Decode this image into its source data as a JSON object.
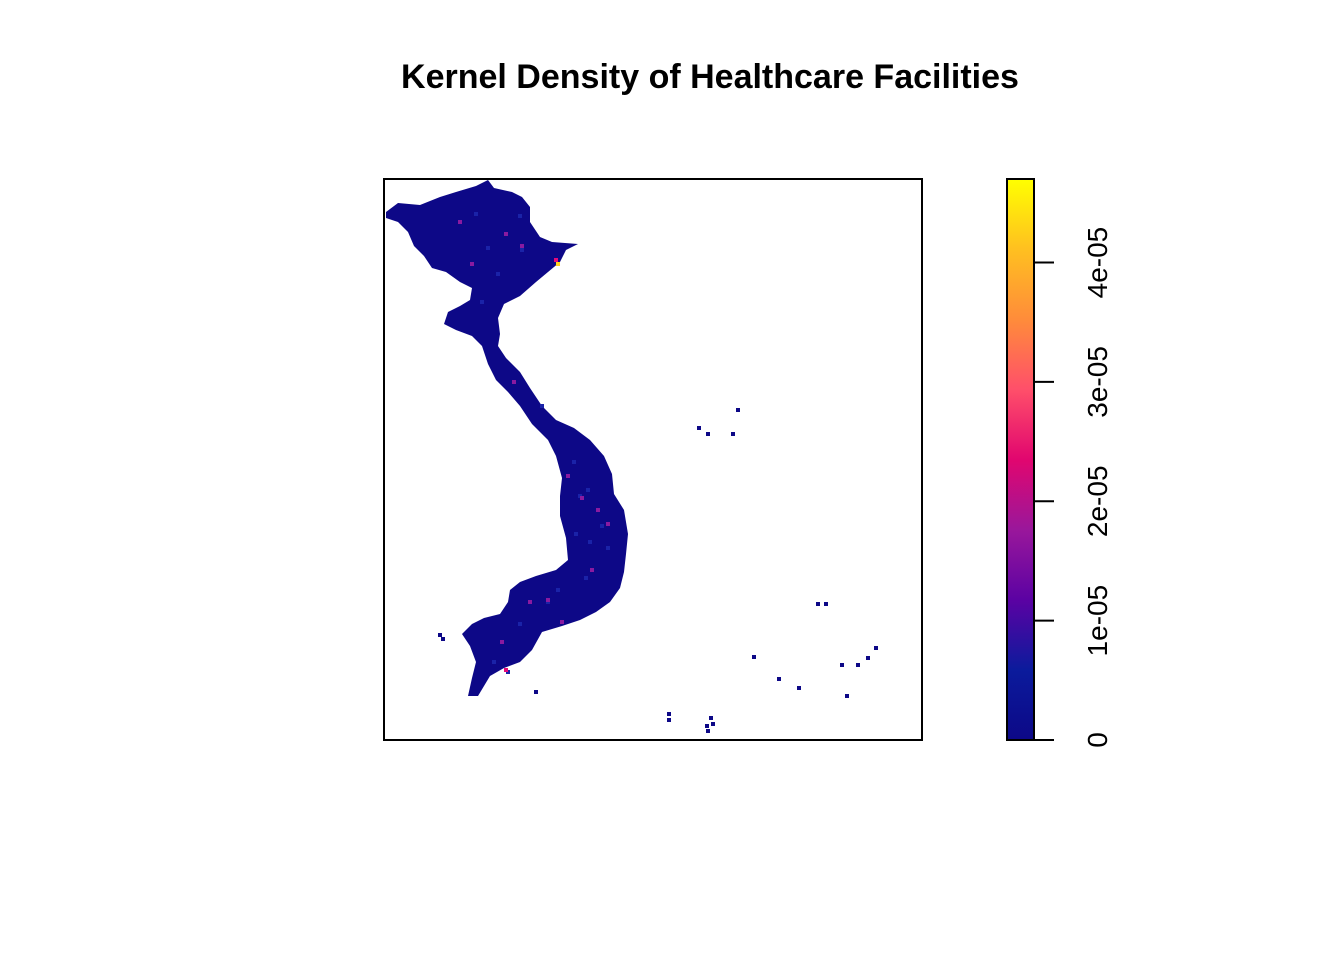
{
  "chart_data": {
    "type": "heatmap",
    "title": "Kernel Density of Healthcare Facilities",
    "xlabel": "",
    "ylabel": "",
    "axes_shown": false,
    "legend": {
      "placement": "right",
      "range": [
        0,
        4.7e-05
      ],
      "ticks": [
        0,
        1e-05,
        2e-05,
        3e-05,
        4e-05
      ],
      "tick_labels": [
        "0",
        "1e-05",
        "2e-05",
        "3e-05",
        "4e-05"
      ],
      "palette": [
        "#0d0887",
        "#0b1b9c",
        "#5b02a3",
        "#9a179b",
        "#e1066f",
        "#ff4f6a",
        "#ff8c3a",
        "#ffc020",
        "#ffff00"
      ]
    },
    "colors": {
      "background": "#ffffff",
      "low": "#0d0887",
      "mid_low": "#1a23a8",
      "hotspot_medium": "#8a1aa0",
      "hotspot_high": "#e5097a",
      "hotspot_peak": "#ffd21f"
    },
    "notes": "Raster of density values in geographic extent of Vietnam; nearly all cells near 0 (dark blue) with a peak (~4.5e-05) near the northeast coast."
  }
}
